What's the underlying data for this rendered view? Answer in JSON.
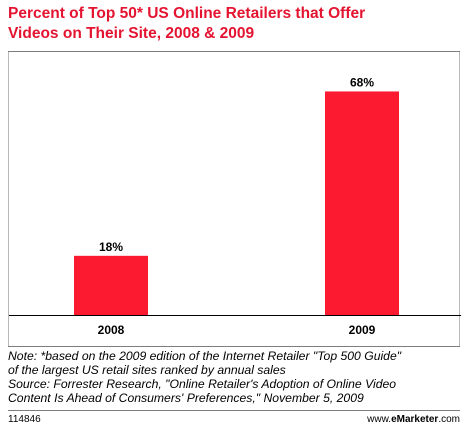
{
  "title_lines": [
    "Percent of Top 50* US Online Retailers that Offer",
    "Videos on Their Site, 2008 & 2009"
  ],
  "colors": {
    "title": "#e41431",
    "bar": "#fc1a31",
    "axis": "#000000"
  },
  "chart_data": {
    "type": "bar",
    "title": "Percent of Top 50* US Online Retailers that Offer Videos on Their Site, 2008 & 2009",
    "categories": [
      "2008",
      "2009"
    ],
    "values": [
      18,
      68
    ],
    "value_labels": [
      "18%",
      "68%"
    ],
    "xlabel": "",
    "ylabel": "",
    "ylim": [
      0,
      80
    ],
    "grid": false,
    "legend": "none"
  },
  "note_lines": [
    "Note: *based on the 2009 edition of the Internet Retailer \"Top 500 Guide\"",
    "of the largest US retail sites ranked by annual sales",
    "Source: Forrester Research, \"Online Retailer's Adoption of Online Video",
    "Content Is Ahead of Consumers' Preferences,\" November 5, 2009"
  ],
  "footer": {
    "id": "114846",
    "brand_prefix": "www.",
    "brand_name": "eMarketer",
    "brand_suffix": ".com"
  }
}
